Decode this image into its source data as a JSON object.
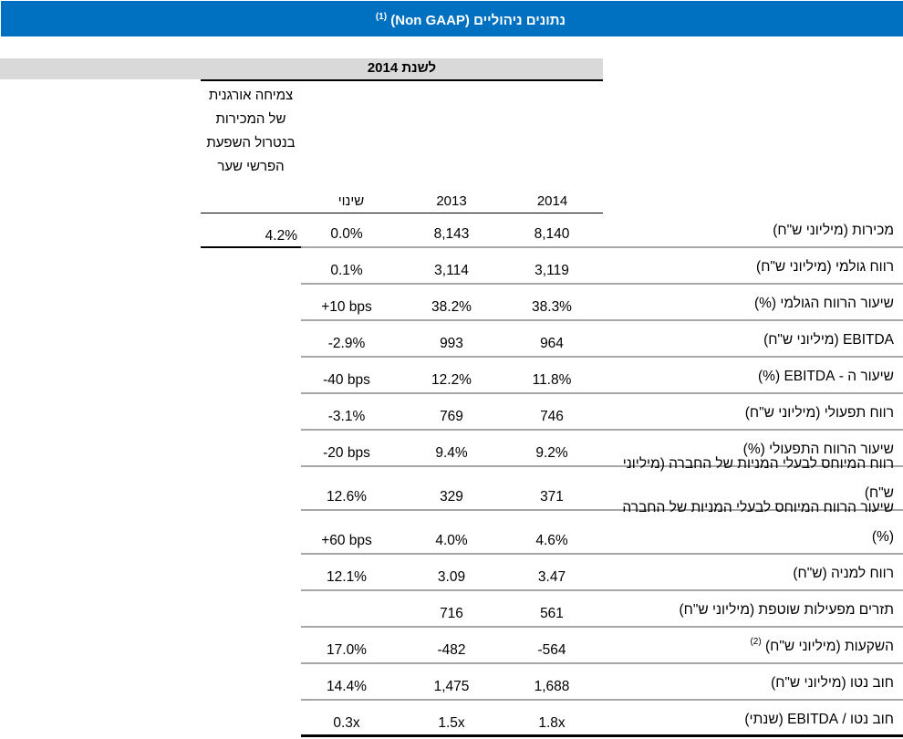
{
  "header": {
    "title": "נתונים ניהוליים (Non GAAP)",
    "title_footnote": "(1)",
    "brand_color": "#0070C0"
  },
  "period": {
    "label": "לשנת 2014"
  },
  "columns": {
    "organic_growth": "צמיחה אורגנית של המכירות בנטרול השפעת הפרשי שער",
    "change": "שינוי",
    "y2013": "2013",
    "y2014": "2014"
  },
  "organic_growth_sales": "4.2%",
  "rows": [
    {
      "label": "מכירות (מיליוני ש\"ח)",
      "footnote": "",
      "y2014": "8,140",
      "y2013": "8,143",
      "change": "0.0%"
    },
    {
      "label": "רווח גולמי (מיליוני ש\"ח)",
      "footnote": "",
      "y2014": "3,119",
      "y2013": "3,114",
      "change": "0.1%"
    },
    {
      "label": "שיעור הרווח הגולמי (%)",
      "footnote": "",
      "y2014": "38.3%",
      "y2013": "38.2%",
      "change": "+10 bps"
    },
    {
      "label": "EBITDA (מיליוני ש\"ח)",
      "footnote": "",
      "y2014": "964",
      "y2013": "993",
      "change": "-2.9%"
    },
    {
      "label": "שיעור ה - EBITDA  (%)",
      "footnote": "",
      "y2014": "11.8%",
      "y2013": "12.2%",
      "change": "-40 bps"
    },
    {
      "label": "רווח תפעולי  (מיליוני ש\"ח)",
      "footnote": "",
      "y2014": "746",
      "y2013": "769",
      "change": "-3.1%"
    },
    {
      "label": "שיעור הרווח התפעולי (%)",
      "footnote": "",
      "y2014": "9.2%",
      "y2013": "9.4%",
      "change": "-20 bps"
    },
    {
      "label": "רווח המיוחס לבעלי המניות של החברה (מיליוני ש\"ח)",
      "footnote": "",
      "y2014": "371",
      "y2013": "329",
      "change": "12.6%"
    },
    {
      "label": "שיעור הרווח המיוחס לבעלי המניות של החברה (%)",
      "footnote": "",
      "y2014": "4.6%",
      "y2013": "4.0%",
      "change": "+60 bps"
    },
    {
      "label": "רווח למניה (ש\"ח)",
      "footnote": "",
      "y2014": "3.47",
      "y2013": "3.09",
      "change": "12.1%"
    },
    {
      "label": "תזרים מפעילות שוטפת (מיליוני ש\"ח)",
      "footnote": "",
      "y2014": "561",
      "y2013": "716",
      "change": ""
    },
    {
      "label": "השקעות (מיליוני ש\"ח)",
      "footnote": "(2)",
      "y2014": "-564",
      "y2013": "-482",
      "change": "17.0%"
    },
    {
      "label": "חוב נטו (מיליוני ש\"ח)",
      "footnote": "",
      "y2014": "1,688",
      "y2013": "1,475",
      "change": "14.4%"
    },
    {
      "label": "חוב נטו / EBITDA (שנתי)",
      "footnote": "",
      "y2014": "1.8x",
      "y2013": "1.5x",
      "change": "0.3x"
    }
  ]
}
